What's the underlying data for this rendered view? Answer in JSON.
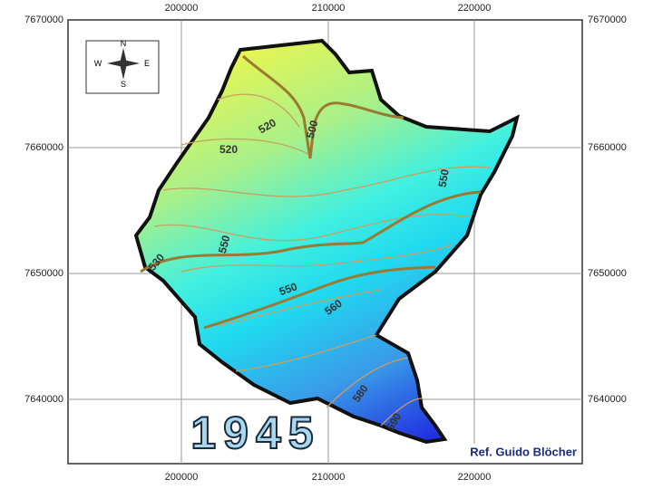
{
  "map": {
    "top_labels": [
      "200000",
      "210000",
      "220000"
    ],
    "bottom_labels": [
      "200000",
      "210000",
      "220000"
    ],
    "left_labels": [
      "7670000",
      "7660000",
      "7650000",
      "7640000"
    ],
    "right_labels": [
      "7670000",
      "7660000",
      "7650000",
      "7640000"
    ],
    "compass": {
      "n": "N",
      "e": "E",
      "s": "S",
      "w": "W"
    },
    "contour_labels": [
      "520",
      "500",
      "520",
      "550",
      "550",
      "530",
      "550",
      "560",
      "580",
      "590"
    ],
    "year": "1945",
    "reference": "Ref. Guido Blöcher"
  }
}
